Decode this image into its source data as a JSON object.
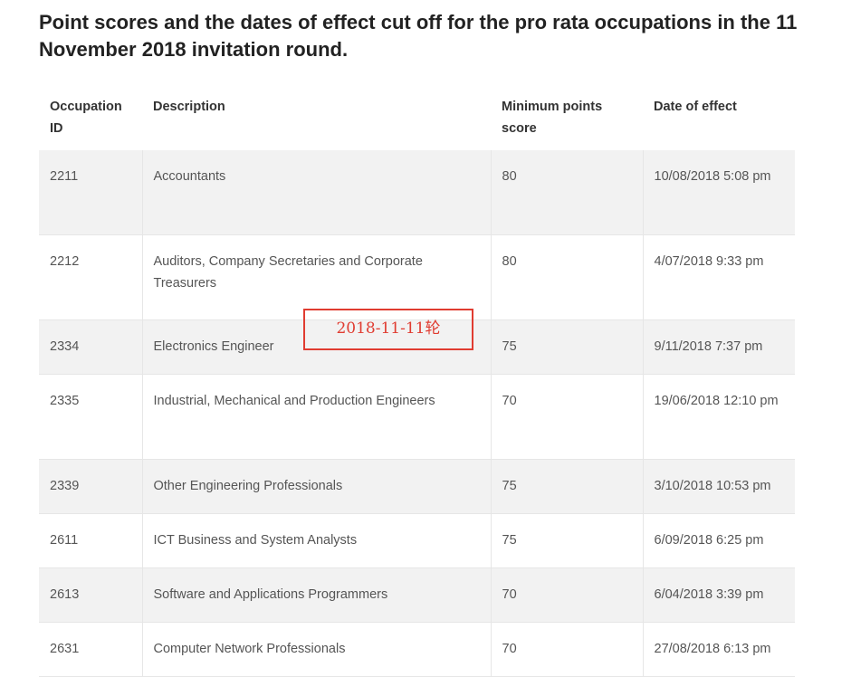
{
  "title": "Point scores and the dates of effect cut off for the pro rata occupations in the 11 November 2018 invitation round.",
  "table": {
    "headers": [
      "Occupation ID",
      "Description",
      "Minimum points score",
      "Date of effect"
    ],
    "rows": [
      {
        "id": "2211",
        "description": "Accountants",
        "points": "80",
        "date": "10/08/2018  5:08 pm"
      },
      {
        "id": "2212",
        "description": "Auditors, Company Secretaries and Corporate Treasurers",
        "points": "80",
        "date": "4/07/2018  9:33 pm"
      },
      {
        "id": "2334",
        "description": "Electronics Engineer",
        "points": "75",
        "date": "9/11/2018  7:37 pm"
      },
      {
        "id": "2335",
        "description": "Industrial, Mechanical and Production Engineers",
        "points": "70",
        "date": "19/06/2018  12:10 pm"
      },
      {
        "id": "2339",
        "description": "Other Engineering Professionals",
        "points": "75",
        "date": "3/10/2018  10:53 pm"
      },
      {
        "id": "2611",
        "description": "ICT Business and System Analysts",
        "points": "75",
        "date": "6/09/2018  6:25 pm"
      },
      {
        "id": "2613",
        "description": "Software and Applications Programmers",
        "points": "70",
        "date": "6/04/2018  3:39 pm"
      },
      {
        "id": "2631",
        "description": "Computer Network Professionals",
        "points": "70",
        "date": "27/08/2018  6:13 pm"
      }
    ]
  },
  "annotation": {
    "text": "2018-11-11轮",
    "color": "#e03c31"
  }
}
